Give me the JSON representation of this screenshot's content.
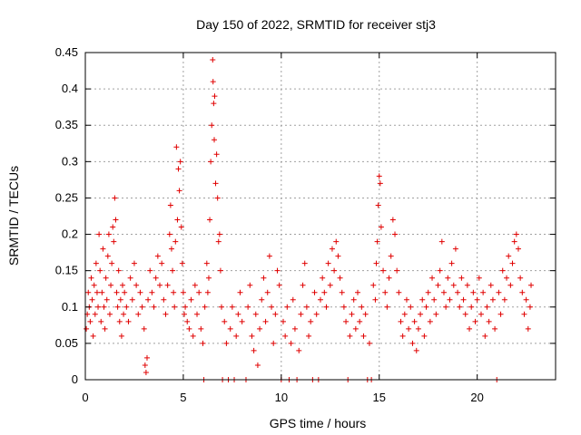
{
  "chart_data": {
    "type": "scatter",
    "title": "Day 150 of 2022, SRMTID for receiver stj3",
    "xlabel": "GPS time / hours",
    "ylabel": "SRMTID / TECUs",
    "xlim": [
      0,
      24
    ],
    "ylim": [
      0,
      0.45
    ],
    "xticks": [
      0,
      5,
      10,
      15,
      20
    ],
    "yticks": [
      0,
      0.05,
      0.1,
      0.15,
      0.2,
      0.25,
      0.3,
      0.35,
      0.4,
      0.45
    ],
    "xtick_labels": [
      "0",
      "5",
      "10",
      "15",
      "20"
    ],
    "ytick_labels": [
      "0",
      "0.05",
      "0.1",
      "0.15",
      "0.2",
      "0.25",
      "0.3",
      "0.35",
      "0.4",
      "0.45"
    ],
    "grid": true,
    "marker": "+",
    "color": "#e00000",
    "series": [
      {
        "name": "SRMTID",
        "points": [
          [
            0.05,
            0.07
          ],
          [
            0.1,
            0.09
          ],
          [
            0.15,
            0.12
          ],
          [
            0.2,
            0.1
          ],
          [
            0.25,
            0.08
          ],
          [
            0.3,
            0.14
          ],
          [
            0.35,
            0.11
          ],
          [
            0.4,
            0.06
          ],
          [
            0.45,
            0.13
          ],
          [
            0.5,
            0.09
          ],
          [
            0.55,
            0.16
          ],
          [
            0.6,
            0.12
          ],
          [
            0.65,
            0.1
          ],
          [
            0.7,
            0.2
          ],
          [
            0.75,
            0.15
          ],
          [
            0.8,
            0.08
          ],
          [
            0.85,
            0.12
          ],
          [
            0.9,
            0.18
          ],
          [
            0.95,
            0.1
          ],
          [
            1.0,
            0.07
          ],
          [
            1.05,
            0.14
          ],
          [
            1.1,
            0.11
          ],
          [
            1.15,
            0.17
          ],
          [
            1.2,
            0.2
          ],
          [
            1.25,
            0.09
          ],
          [
            1.3,
            0.13
          ],
          [
            1.35,
            0.16
          ],
          [
            1.4,
            0.21
          ],
          [
            1.45,
            0.19
          ],
          [
            1.5,
            0.25
          ],
          [
            1.55,
            0.22
          ],
          [
            1.6,
            0.12
          ],
          [
            1.65,
            0.1
          ],
          [
            1.7,
            0.15
          ],
          [
            1.75,
            0.08
          ],
          [
            1.8,
            0.11
          ],
          [
            1.85,
            0.06
          ],
          [
            1.9,
            0.13
          ],
          [
            1.95,
            0.09
          ],
          [
            2.0,
            0.12
          ],
          [
            2.1,
            0.1
          ],
          [
            2.2,
            0.08
          ],
          [
            2.3,
            0.14
          ],
          [
            2.4,
            0.11
          ],
          [
            2.5,
            0.16
          ],
          [
            2.6,
            0.13
          ],
          [
            2.7,
            0.09
          ],
          [
            2.8,
            0.12
          ],
          [
            2.9,
            0.1
          ],
          [
            3.0,
            0.07
          ],
          [
            3.05,
            0.02
          ],
          [
            3.1,
            0.01
          ],
          [
            3.15,
            0.03
          ],
          [
            3.2,
            0.11
          ],
          [
            3.3,
            0.15
          ],
          [
            3.4,
            0.12
          ],
          [
            3.5,
            0.1
          ],
          [
            3.6,
            0.14
          ],
          [
            3.7,
            0.17
          ],
          [
            3.8,
            0.13
          ],
          [
            3.9,
            0.16
          ],
          [
            4.0,
            0.11
          ],
          [
            4.1,
            0.09
          ],
          [
            4.2,
            0.13
          ],
          [
            4.3,
            0.2
          ],
          [
            4.35,
            0.24
          ],
          [
            4.4,
            0.18
          ],
          [
            4.45,
            0.15
          ],
          [
            4.5,
            0.12
          ],
          [
            4.55,
            0.1
          ],
          [
            4.6,
            0.19
          ],
          [
            4.65,
            0.32
          ],
          [
            4.7,
            0.22
          ],
          [
            4.75,
            0.29
          ],
          [
            4.8,
            0.26
          ],
          [
            4.85,
            0.3
          ],
          [
            4.9,
            0.21
          ],
          [
            4.95,
            0.16
          ],
          [
            5.0,
            0.12
          ],
          [
            5.05,
            0.09
          ],
          [
            5.1,
            0.1
          ],
          [
            5.2,
            0.08
          ],
          [
            5.3,
            0.07
          ],
          [
            5.4,
            0.11
          ],
          [
            5.5,
            0.06
          ],
          [
            5.6,
            0.13
          ],
          [
            5.7,
            0.09
          ],
          [
            5.8,
            0.12
          ],
          [
            5.9,
            0.07
          ],
          [
            6.0,
            0.05
          ],
          [
            6.05,
            0.0
          ],
          [
            6.1,
            0.1
          ],
          [
            6.2,
            0.16
          ],
          [
            6.25,
            0.12
          ],
          [
            6.3,
            0.14
          ],
          [
            6.35,
            0.22
          ],
          [
            6.4,
            0.3
          ],
          [
            6.45,
            0.35
          ],
          [
            6.5,
            0.44
          ],
          [
            6.52,
            0.41
          ],
          [
            6.55,
            0.38
          ],
          [
            6.58,
            0.33
          ],
          [
            6.6,
            0.39
          ],
          [
            6.65,
            0.27
          ],
          [
            6.7,
            0.31
          ],
          [
            6.75,
            0.25
          ],
          [
            6.8,
            0.19
          ],
          [
            6.85,
            0.2
          ],
          [
            6.9,
            0.15
          ],
          [
            6.95,
            0.1
          ],
          [
            7.0,
            0.0
          ],
          [
            7.1,
            0.08
          ],
          [
            7.2,
            0.05
          ],
          [
            7.3,
            0.0
          ],
          [
            7.4,
            0.07
          ],
          [
            7.5,
            0.1
          ],
          [
            7.6,
            0.0
          ],
          [
            7.7,
            0.06
          ],
          [
            7.8,
            0.09
          ],
          [
            7.9,
            0.12
          ],
          [
            8.0,
            0.08
          ],
          [
            8.2,
            0.0
          ],
          [
            8.3,
            0.1
          ],
          [
            8.4,
            0.13
          ],
          [
            8.5,
            0.06
          ],
          [
            8.6,
            0.04
          ],
          [
            8.7,
            0.09
          ],
          [
            8.8,
            0.02
          ],
          [
            8.9,
            0.07
          ],
          [
            9.0,
            0.11
          ],
          [
            9.1,
            0.14
          ],
          [
            9.2,
            0.08
          ],
          [
            9.3,
            0.12
          ],
          [
            9.4,
            0.17
          ],
          [
            9.5,
            0.1
          ],
          [
            9.6,
            0.05
          ],
          [
            9.7,
            0.09
          ],
          [
            9.8,
            0.15
          ],
          [
            9.9,
            0.13
          ],
          [
            10.0,
            0.0
          ],
          [
            10.1,
            0.08
          ],
          [
            10.2,
            0.06
          ],
          [
            10.3,
            0.1
          ],
          [
            10.4,
            0.0
          ],
          [
            10.5,
            0.05
          ],
          [
            10.6,
            0.11
          ],
          [
            10.7,
            0.07
          ],
          [
            10.8,
            0.0
          ],
          [
            10.9,
            0.04
          ],
          [
            11.0,
            0.09
          ],
          [
            11.1,
            0.13
          ],
          [
            11.2,
            0.16
          ],
          [
            11.3,
            0.1
          ],
          [
            11.4,
            0.06
          ],
          [
            11.5,
            0.08
          ],
          [
            11.6,
            0.0
          ],
          [
            11.7,
            0.12
          ],
          [
            11.8,
            0.09
          ],
          [
            11.9,
            0.0
          ],
          [
            12.0,
            0.11
          ],
          [
            12.1,
            0.14
          ],
          [
            12.2,
            0.12
          ],
          [
            12.3,
            0.1
          ],
          [
            12.4,
            0.16
          ],
          [
            12.5,
            0.13
          ],
          [
            12.6,
            0.18
          ],
          [
            12.7,
            0.15
          ],
          [
            12.8,
            0.19
          ],
          [
            12.9,
            0.17
          ],
          [
            13.0,
            0.14
          ],
          [
            13.1,
            0.12
          ],
          [
            13.2,
            0.1
          ],
          [
            13.3,
            0.08
          ],
          [
            13.4,
            0.0
          ],
          [
            13.5,
            0.06
          ],
          [
            13.6,
            0.09
          ],
          [
            13.7,
            0.11
          ],
          [
            13.8,
            0.07
          ],
          [
            13.9,
            0.12
          ],
          [
            14.0,
            0.08
          ],
          [
            14.1,
            0.1
          ],
          [
            14.2,
            0.06
          ],
          [
            14.3,
            0.09
          ],
          [
            14.4,
            0.0
          ],
          [
            14.5,
            0.05
          ],
          [
            14.6,
            0.0
          ],
          [
            14.7,
            0.13
          ],
          [
            14.8,
            0.11
          ],
          [
            14.85,
            0.16
          ],
          [
            14.9,
            0.19
          ],
          [
            14.95,
            0.24
          ],
          [
            15.0,
            0.28
          ],
          [
            15.05,
            0.27
          ],
          [
            15.1,
            0.21
          ],
          [
            15.2,
            0.15
          ],
          [
            15.3,
            0.12
          ],
          [
            15.4,
            0.1
          ],
          [
            15.5,
            0.14
          ],
          [
            15.6,
            0.17
          ],
          [
            15.7,
            0.22
          ],
          [
            15.8,
            0.2
          ],
          [
            15.9,
            0.15
          ],
          [
            16.0,
            0.12
          ],
          [
            16.1,
            0.08
          ],
          [
            16.2,
            0.06
          ],
          [
            16.3,
            0.09
          ],
          [
            16.4,
            0.11
          ],
          [
            16.5,
            0.07
          ],
          [
            16.6,
            0.1
          ],
          [
            16.7,
            0.05
          ],
          [
            16.8,
            0.08
          ],
          [
            16.9,
            0.04
          ],
          [
            17.0,
            0.07
          ],
          [
            17.1,
            0.09
          ],
          [
            17.2,
            0.11
          ],
          [
            17.3,
            0.06
          ],
          [
            17.4,
            0.1
          ],
          [
            17.5,
            0.12
          ],
          [
            17.6,
            0.08
          ],
          [
            17.7,
            0.14
          ],
          [
            17.8,
            0.11
          ],
          [
            17.9,
            0.09
          ],
          [
            18.0,
            0.13
          ],
          [
            18.1,
            0.15
          ],
          [
            18.2,
            0.19
          ],
          [
            18.3,
            0.12
          ],
          [
            18.4,
            0.1
          ],
          [
            18.5,
            0.14
          ],
          [
            18.6,
            0.11
          ],
          [
            18.7,
            0.16
          ],
          [
            18.8,
            0.13
          ],
          [
            18.9,
            0.18
          ],
          [
            19.0,
            0.12
          ],
          [
            19.1,
            0.1
          ],
          [
            19.2,
            0.14
          ],
          [
            19.3,
            0.11
          ],
          [
            19.4,
            0.09
          ],
          [
            19.5,
            0.13
          ],
          [
            19.6,
            0.07
          ],
          [
            19.7,
            0.1
          ],
          [
            19.8,
            0.12
          ],
          [
            19.9,
            0.08
          ],
          [
            20.0,
            0.11
          ],
          [
            20.1,
            0.14
          ],
          [
            20.2,
            0.09
          ],
          [
            20.3,
            0.12
          ],
          [
            20.4,
            0.06
          ],
          [
            20.5,
            0.1
          ],
          [
            20.6,
            0.08
          ],
          [
            20.7,
            0.13
          ],
          [
            20.8,
            0.11
          ],
          [
            20.9,
            0.07
          ],
          [
            21.0,
            0.0
          ],
          [
            21.1,
            0.12
          ],
          [
            21.2,
            0.09
          ],
          [
            21.3,
            0.15
          ],
          [
            21.4,
            0.11
          ],
          [
            21.5,
            0.14
          ],
          [
            21.6,
            0.17
          ],
          [
            21.7,
            0.13
          ],
          [
            21.8,
            0.16
          ],
          [
            21.9,
            0.19
          ],
          [
            22.0,
            0.2
          ],
          [
            22.1,
            0.18
          ],
          [
            22.2,
            0.14
          ],
          [
            22.3,
            0.12
          ],
          [
            22.4,
            0.09
          ],
          [
            22.5,
            0.11
          ],
          [
            22.6,
            0.07
          ],
          [
            22.7,
            0.1
          ],
          [
            22.75,
            0.13
          ]
        ]
      }
    ]
  }
}
